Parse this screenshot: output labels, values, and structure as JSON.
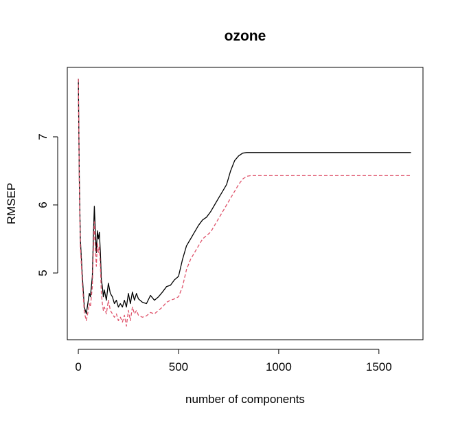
{
  "chart_data": {
    "type": "line",
    "title": "ozone",
    "xlabel": "number of components",
    "ylabel": "RMSEP",
    "xlim": [
      -55,
      1720
    ],
    "ylim": [
      4.02,
      8.02
    ],
    "x_ticks": [
      0,
      500,
      1000,
      1500
    ],
    "x_tick_labels": [
      "0",
      "500",
      "1000",
      "1500"
    ],
    "y_ticks": [
      5,
      6,
      7
    ],
    "y_tick_labels": [
      "5",
      "6",
      "7"
    ],
    "grid": false,
    "legend": "none",
    "series": [
      {
        "color": "#000000",
        "line_style": "solid",
        "x": [
          0,
          5,
          10,
          20,
          30,
          40,
          50,
          55,
          60,
          70,
          75,
          80,
          85,
          90,
          95,
          100,
          105,
          110,
          115,
          120,
          125,
          130,
          140,
          150,
          160,
          170,
          180,
          190,
          200,
          210,
          220,
          230,
          240,
          250,
          260,
          270,
          280,
          290,
          300,
          320,
          340,
          360,
          380,
          400,
          420,
          440,
          460,
          480,
          500,
          520,
          540,
          560,
          580,
          600,
          620,
          640,
          660,
          680,
          700,
          720,
          740,
          760,
          780,
          800,
          820,
          840,
          860,
          880,
          1000,
          1200,
          1400,
          1660
        ],
        "y": [
          7.85,
          6.4,
          5.5,
          4.95,
          4.5,
          4.4,
          4.6,
          4.7,
          4.65,
          4.95,
          5.5,
          5.98,
          5.6,
          5.3,
          5.62,
          5.5,
          5.6,
          5.3,
          4.9,
          4.8,
          4.65,
          4.75,
          4.6,
          4.85,
          4.7,
          4.65,
          4.55,
          4.6,
          4.5,
          4.55,
          4.5,
          4.6,
          4.5,
          4.7,
          4.55,
          4.72,
          4.6,
          4.7,
          4.62,
          4.57,
          4.55,
          4.67,
          4.6,
          4.65,
          4.72,
          4.8,
          4.82,
          4.9,
          4.95,
          5.2,
          5.4,
          5.5,
          5.6,
          5.7,
          5.78,
          5.82,
          5.9,
          6.0,
          6.1,
          6.2,
          6.3,
          6.5,
          6.65,
          6.72,
          6.76,
          6.77,
          6.77,
          6.77,
          6.77,
          6.77,
          6.77,
          6.77
        ]
      },
      {
        "color": "#DF536B",
        "line_style": "dashed",
        "x": [
          0,
          5,
          10,
          20,
          30,
          40,
          50,
          55,
          60,
          70,
          75,
          80,
          85,
          90,
          95,
          100,
          105,
          110,
          115,
          120,
          125,
          130,
          140,
          150,
          160,
          170,
          180,
          190,
          200,
          210,
          220,
          230,
          240,
          250,
          260,
          270,
          280,
          290,
          300,
          320,
          340,
          360,
          380,
          400,
          420,
          440,
          460,
          480,
          500,
          520,
          540,
          560,
          580,
          600,
          620,
          640,
          660,
          680,
          700,
          720,
          740,
          760,
          780,
          800,
          820,
          840,
          860,
          880,
          1000,
          1200,
          1400,
          1660
        ],
        "y": [
          7.85,
          6.3,
          5.4,
          4.85,
          4.42,
          4.3,
          4.45,
          4.55,
          4.5,
          4.8,
          5.3,
          5.75,
          5.35,
          5.1,
          5.45,
          5.3,
          5.4,
          5.1,
          4.7,
          4.55,
          4.45,
          4.5,
          4.4,
          4.6,
          4.45,
          4.4,
          4.35,
          4.4,
          4.3,
          4.35,
          4.28,
          4.38,
          4.22,
          4.45,
          4.3,
          4.5,
          4.4,
          4.45,
          4.38,
          4.35,
          4.37,
          4.42,
          4.4,
          4.45,
          4.5,
          4.57,
          4.6,
          4.62,
          4.65,
          4.8,
          5.05,
          5.2,
          5.3,
          5.4,
          5.5,
          5.55,
          5.6,
          5.7,
          5.8,
          5.9,
          6.0,
          6.1,
          6.2,
          6.3,
          6.38,
          6.42,
          6.43,
          6.43,
          6.43,
          6.43,
          6.43,
          6.43
        ]
      }
    ]
  }
}
